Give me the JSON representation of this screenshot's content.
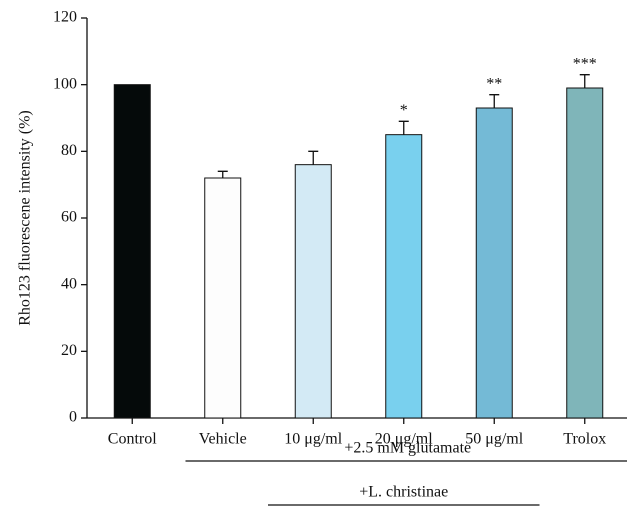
{
  "chart_data": {
    "type": "bar",
    "y_label": "Rho123 fluorescene intensity (%)",
    "categories": [
      "Control",
      "Vehicle",
      "10 μg/ml",
      "20 μg/ml",
      "50 μg/ml",
      "Trolox"
    ],
    "values": [
      100,
      72,
      76,
      85,
      93,
      99
    ],
    "errors": [
      null,
      2,
      4,
      4,
      4,
      4
    ],
    "significance": [
      null,
      null,
      null,
      "*",
      "**",
      "***"
    ],
    "colors": [
      "#050a0a",
      "#fdfdfd",
      "#d3eaf5",
      "#79d0ee",
      "#74bad6",
      "#7fb5b9"
    ],
    "ylim": [
      0,
      120
    ],
    "yticks": [
      0,
      20,
      40,
      60,
      80,
      100,
      120
    ],
    "groups": [
      {
        "label": "+2.5 mM glutamate",
        "from": 1,
        "to": 5
      },
      {
        "label": "+L. christinae",
        "from": 2,
        "to": 4
      }
    ]
  }
}
